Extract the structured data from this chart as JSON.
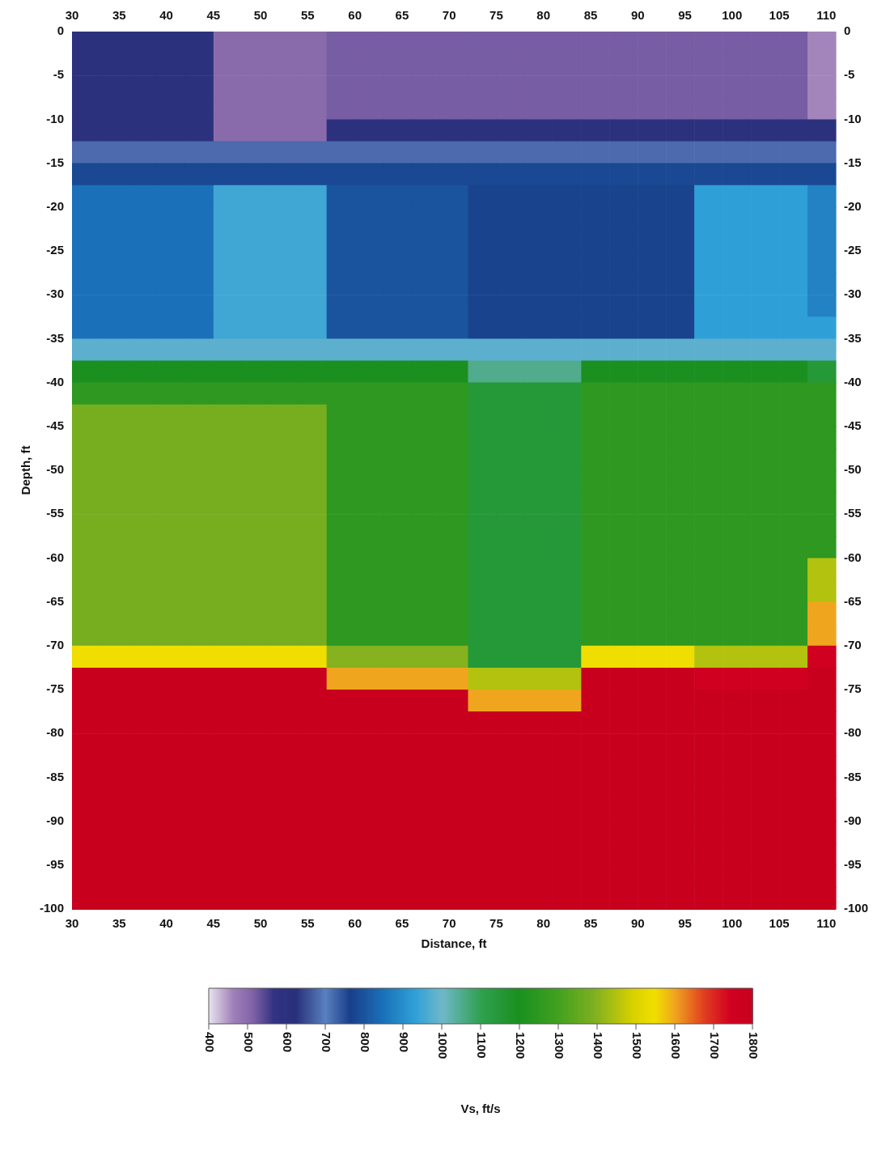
{
  "chart_data": {
    "type": "heatmap",
    "xlabel": "Distance, ft",
    "ylabel": "Depth, ft",
    "clabel": "Vs, ft/s",
    "xlim": [
      30,
      111
    ],
    "xticks": [
      30,
      35,
      40,
      45,
      50,
      55,
      60,
      65,
      70,
      75,
      80,
      85,
      90,
      95,
      100,
      105,
      110
    ],
    "x2lim": [
      30,
      111
    ],
    "x2ticks": [
      30,
      35,
      40,
      45,
      50,
      55,
      60,
      65,
      70,
      75,
      80,
      85,
      90,
      95,
      100,
      105,
      110
    ],
    "ylim": [
      -100,
      0
    ],
    "yticks": [
      0,
      -5,
      -10,
      -15,
      -20,
      -25,
      -30,
      -35,
      -40,
      -45,
      -50,
      -55,
      -60,
      -65,
      -70,
      -75,
      -80,
      -85,
      -90,
      -95,
      -100
    ],
    "y2lim": [
      -100,
      0
    ],
    "y2ticks": [
      0,
      -5,
      -10,
      -15,
      -20,
      -25,
      -30,
      -35,
      -40,
      -45,
      -50,
      -55,
      -60,
      -65,
      -70,
      -75,
      -80,
      -85,
      -90,
      -95,
      -100
    ],
    "clim": [
      400,
      1800
    ],
    "cticks": [
      400,
      500,
      600,
      700,
      800,
      900,
      1000,
      1100,
      1200,
      1300,
      1400,
      1500,
      1600,
      1700,
      1800
    ],
    "grid": false,
    "cells": [
      [
        600,
        600,
        600,
        600,
        600,
        500,
        500,
        500,
        500,
        520,
        520,
        520,
        520,
        520,
        520,
        520,
        520,
        520,
        520,
        520,
        520,
        520,
        520,
        520,
        520,
        520,
        460
      ],
      [
        600,
        600,
        600,
        600,
        600,
        500,
        500,
        500,
        500,
        520,
        520,
        520,
        520,
        520,
        520,
        520,
        520,
        520,
        520,
        520,
        520,
        520,
        520,
        520,
        520,
        520,
        460
      ],
      [
        600,
        600,
        600,
        600,
        600,
        500,
        500,
        500,
        500,
        520,
        520,
        520,
        520,
        520,
        520,
        520,
        520,
        520,
        520,
        520,
        520,
        520,
        520,
        520,
        520,
        520,
        460
      ],
      [
        600,
        600,
        600,
        600,
        600,
        500,
        500,
        500,
        500,
        520,
        520,
        520,
        520,
        520,
        520,
        520,
        520,
        520,
        520,
        520,
        520,
        520,
        520,
        520,
        520,
        520,
        460
      ],
      [
        600,
        600,
        600,
        600,
        600,
        500,
        500,
        500,
        500,
        600,
        600,
        600,
        600,
        600,
        600,
        600,
        600,
        600,
        600,
        600,
        600,
        600,
        600,
        600,
        600,
        600,
        600
      ],
      [
        680,
        680,
        680,
        680,
        680,
        680,
        680,
        680,
        680,
        680,
        680,
        680,
        680,
        680,
        680,
        680,
        680,
        680,
        680,
        680,
        680,
        680,
        680,
        680,
        680,
        680,
        680
      ],
      [
        780,
        780,
        780,
        780,
        780,
        780,
        780,
        780,
        780,
        780,
        780,
        780,
        780,
        780,
        780,
        780,
        780,
        780,
        780,
        780,
        780,
        780,
        780,
        780,
        780,
        780,
        780
      ],
      [
        850,
        850,
        850,
        850,
        850,
        950,
        950,
        950,
        950,
        800,
        800,
        800,
        800,
        800,
        770,
        770,
        770,
        770,
        770,
        770,
        770,
        770,
        930,
        930,
        930,
        930,
        880
      ],
      [
        850,
        850,
        850,
        850,
        850,
        950,
        950,
        950,
        950,
        800,
        800,
        800,
        800,
        800,
        770,
        770,
        770,
        770,
        770,
        770,
        770,
        770,
        930,
        930,
        930,
        930,
        880
      ],
      [
        850,
        850,
        850,
        850,
        850,
        950,
        950,
        950,
        950,
        800,
        800,
        800,
        800,
        800,
        770,
        770,
        770,
        770,
        770,
        770,
        770,
        770,
        930,
        930,
        930,
        930,
        880
      ],
      [
        850,
        850,
        850,
        850,
        850,
        950,
        950,
        950,
        950,
        800,
        800,
        800,
        800,
        800,
        770,
        770,
        770,
        770,
        770,
        770,
        770,
        770,
        930,
        930,
        930,
        930,
        880
      ],
      [
        850,
        850,
        850,
        850,
        850,
        950,
        950,
        950,
        950,
        800,
        800,
        800,
        800,
        800,
        770,
        770,
        770,
        770,
        770,
        770,
        770,
        770,
        930,
        930,
        930,
        930,
        880
      ],
      [
        850,
        850,
        850,
        850,
        850,
        950,
        950,
        950,
        950,
        800,
        800,
        800,
        800,
        800,
        770,
        770,
        770,
        770,
        770,
        770,
        770,
        770,
        930,
        930,
        930,
        930,
        880
      ],
      [
        850,
        850,
        850,
        850,
        850,
        950,
        950,
        950,
        950,
        800,
        800,
        800,
        800,
        800,
        770,
        770,
        770,
        770,
        770,
        770,
        770,
        770,
        930,
        930,
        930,
        930,
        930
      ],
      [
        980,
        980,
        980,
        980,
        980,
        980,
        980,
        980,
        980,
        980,
        980,
        980,
        980,
        980,
        980,
        980,
        980,
        980,
        980,
        980,
        980,
        980,
        980,
        980,
        980,
        980,
        980
      ],
      [
        1200,
        1200,
        1200,
        1200,
        1200,
        1200,
        1200,
        1200,
        1200,
        1200,
        1200,
        1200,
        1200,
        1200,
        1050,
        1050,
        1050,
        1050,
        1200,
        1200,
        1200,
        1200,
        1200,
        1200,
        1200,
        1200,
        1150
      ],
      [
        1250,
        1250,
        1250,
        1250,
        1250,
        1250,
        1250,
        1250,
        1250,
        1250,
        1250,
        1250,
        1250,
        1250,
        1150,
        1150,
        1150,
        1150,
        1250,
        1250,
        1250,
        1250,
        1250,
        1250,
        1250,
        1250,
        1250
      ],
      [
        1380,
        1380,
        1380,
        1380,
        1380,
        1380,
        1380,
        1380,
        1380,
        1250,
        1250,
        1250,
        1250,
        1250,
        1150,
        1150,
        1150,
        1150,
        1250,
        1250,
        1250,
        1250,
        1250,
        1250,
        1250,
        1250,
        1250
      ],
      [
        1380,
        1380,
        1380,
        1380,
        1380,
        1380,
        1380,
        1380,
        1380,
        1250,
        1250,
        1250,
        1250,
        1250,
        1150,
        1150,
        1150,
        1150,
        1250,
        1250,
        1250,
        1250,
        1250,
        1250,
        1250,
        1250,
        1250
      ],
      [
        1380,
        1380,
        1380,
        1380,
        1380,
        1380,
        1380,
        1380,
        1380,
        1250,
        1250,
        1250,
        1250,
        1250,
        1150,
        1150,
        1150,
        1150,
        1250,
        1250,
        1250,
        1250,
        1250,
        1250,
        1250,
        1250,
        1250
      ],
      [
        1380,
        1380,
        1380,
        1380,
        1380,
        1380,
        1380,
        1380,
        1380,
        1250,
        1250,
        1250,
        1250,
        1250,
        1150,
        1150,
        1150,
        1150,
        1250,
        1250,
        1250,
        1250,
        1250,
        1250,
        1250,
        1250,
        1250
      ],
      [
        1380,
        1380,
        1380,
        1380,
        1380,
        1380,
        1380,
        1380,
        1380,
        1250,
        1250,
        1250,
        1250,
        1250,
        1150,
        1150,
        1150,
        1150,
        1250,
        1250,
        1250,
        1250,
        1250,
        1250,
        1250,
        1250,
        1250
      ],
      [
        1380,
        1380,
        1380,
        1380,
        1380,
        1380,
        1380,
        1380,
        1380,
        1250,
        1250,
        1250,
        1250,
        1250,
        1150,
        1150,
        1150,
        1150,
        1250,
        1250,
        1250,
        1250,
        1250,
        1250,
        1250,
        1250,
        1250
      ],
      [
        1380,
        1380,
        1380,
        1380,
        1380,
        1380,
        1380,
        1380,
        1380,
        1250,
        1250,
        1250,
        1250,
        1250,
        1150,
        1150,
        1150,
        1150,
        1250,
        1250,
        1250,
        1250,
        1250,
        1250,
        1250,
        1250,
        1250
      ],
      [
        1380,
        1380,
        1380,
        1380,
        1380,
        1380,
        1380,
        1380,
        1380,
        1250,
        1250,
        1250,
        1250,
        1250,
        1150,
        1150,
        1150,
        1150,
        1250,
        1250,
        1250,
        1250,
        1250,
        1250,
        1250,
        1250,
        1450
      ],
      [
        1380,
        1380,
        1380,
        1380,
        1380,
        1380,
        1380,
        1380,
        1380,
        1250,
        1250,
        1250,
        1250,
        1250,
        1150,
        1150,
        1150,
        1150,
        1250,
        1250,
        1250,
        1250,
        1250,
        1250,
        1250,
        1250,
        1450
      ],
      [
        1380,
        1380,
        1380,
        1380,
        1380,
        1380,
        1380,
        1380,
        1380,
        1250,
        1250,
        1250,
        1250,
        1250,
        1150,
        1150,
        1150,
        1150,
        1250,
        1250,
        1250,
        1250,
        1250,
        1250,
        1250,
        1250,
        1600
      ],
      [
        1380,
        1380,
        1380,
        1380,
        1380,
        1380,
        1380,
        1380,
        1380,
        1250,
        1250,
        1250,
        1250,
        1250,
        1150,
        1150,
        1150,
        1150,
        1250,
        1250,
        1250,
        1250,
        1250,
        1250,
        1250,
        1250,
        1600
      ],
      [
        1550,
        1550,
        1550,
        1550,
        1550,
        1550,
        1550,
        1550,
        1550,
        1400,
        1400,
        1400,
        1400,
        1400,
        1150,
        1150,
        1150,
        1150,
        1550,
        1550,
        1550,
        1550,
        1450,
        1450,
        1450,
        1450,
        1750
      ],
      [
        1800,
        1800,
        1800,
        1800,
        1800,
        1800,
        1800,
        1800,
        1800,
        1600,
        1600,
        1600,
        1600,
        1600,
        1450,
        1450,
        1450,
        1450,
        1800,
        1800,
        1800,
        1800,
        1750,
        1750,
        1750,
        1750,
        1800
      ],
      [
        1800,
        1800,
        1800,
        1800,
        1800,
        1800,
        1800,
        1800,
        1800,
        1800,
        1800,
        1800,
        1800,
        1800,
        1600,
        1600,
        1600,
        1600,
        1800,
        1800,
        1800,
        1800,
        1800,
        1800,
        1800,
        1800,
        1800
      ],
      [
        1800,
        1800,
        1800,
        1800,
        1800,
        1800,
        1800,
        1800,
        1800,
        1800,
        1800,
        1800,
        1800,
        1800,
        1800,
        1800,
        1800,
        1800,
        1800,
        1800,
        1800,
        1800,
        1800,
        1800,
        1800,
        1800,
        1800
      ],
      [
        1800,
        1800,
        1800,
        1800,
        1800,
        1800,
        1800,
        1800,
        1800,
        1800,
        1800,
        1800,
        1800,
        1800,
        1800,
        1800,
        1800,
        1800,
        1800,
        1800,
        1800,
        1800,
        1800,
        1800,
        1800,
        1800,
        1800
      ],
      [
        1800,
        1800,
        1800,
        1800,
        1800,
        1800,
        1800,
        1800,
        1800,
        1800,
        1800,
        1800,
        1800,
        1800,
        1800,
        1800,
        1800,
        1800,
        1800,
        1800,
        1800,
        1800,
        1800,
        1800,
        1800,
        1800,
        1800
      ],
      [
        1800,
        1800,
        1800,
        1800,
        1800,
        1800,
        1800,
        1800,
        1800,
        1800,
        1800,
        1800,
        1800,
        1800,
        1800,
        1800,
        1800,
        1800,
        1800,
        1800,
        1800,
        1800,
        1800,
        1800,
        1800,
        1800,
        1800
      ],
      [
        1800,
        1800,
        1800,
        1800,
        1800,
        1800,
        1800,
        1800,
        1800,
        1800,
        1800,
        1800,
        1800,
        1800,
        1800,
        1800,
        1800,
        1800,
        1800,
        1800,
        1800,
        1800,
        1800,
        1800,
        1800,
        1800,
        1800
      ],
      [
        1800,
        1800,
        1800,
        1800,
        1800,
        1800,
        1800,
        1800,
        1800,
        1800,
        1800,
        1800,
        1800,
        1800,
        1800,
        1800,
        1800,
        1800,
        1800,
        1800,
        1800,
        1800,
        1800,
        1800,
        1800,
        1800,
        1800
      ],
      [
        1800,
        1800,
        1800,
        1800,
        1800,
        1800,
        1800,
        1800,
        1800,
        1800,
        1800,
        1800,
        1800,
        1800,
        1800,
        1800,
        1800,
        1800,
        1800,
        1800,
        1800,
        1800,
        1800,
        1800,
        1800,
        1800,
        1800
      ],
      [
        1800,
        1800,
        1800,
        1800,
        1800,
        1800,
        1800,
        1800,
        1800,
        1800,
        1800,
        1800,
        1800,
        1800,
        1800,
        1800,
        1800,
        1800,
        1800,
        1800,
        1800,
        1800,
        1800,
        1800,
        1800,
        1800,
        1800
      ],
      [
        1800,
        1800,
        1800,
        1800,
        1800,
        1800,
        1800,
        1800,
        1800,
        1800,
        1800,
        1800,
        1800,
        1800,
        1800,
        1800,
        1800,
        1800,
        1800,
        1800,
        1800,
        1800,
        1800,
        1800,
        1800,
        1800,
        1800
      ]
    ]
  }
}
